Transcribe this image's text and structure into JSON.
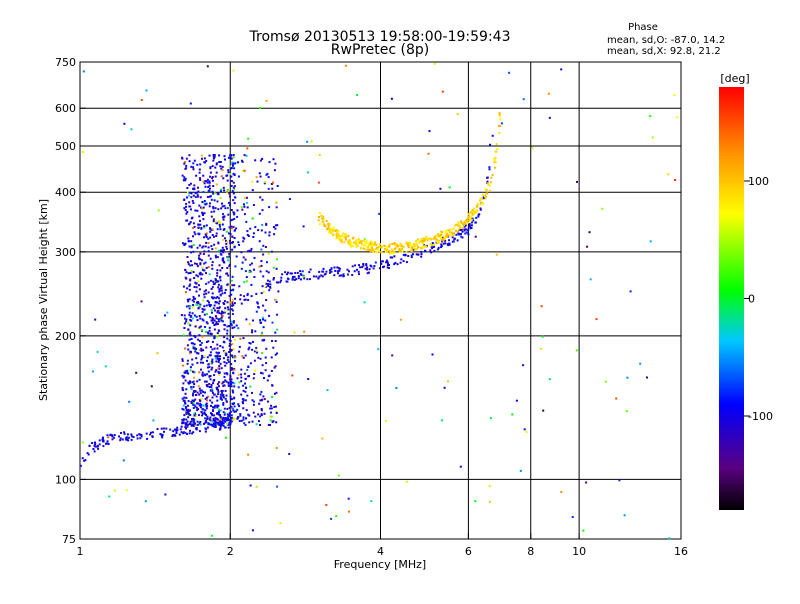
{
  "chart_data": {
    "type": "scatter",
    "title": "Tromsø 20130513 19:58:00-19:59:43",
    "subtitle": "RwPretec (8p)",
    "xlabel": "Frequency [MHz]",
    "ylabel": "Stationary phase Virtual Height [km]",
    "x_scale": "log",
    "y_scale": "log",
    "xlim": [
      1,
      16
    ],
    "ylim": [
      75,
      750
    ],
    "x_ticks": [
      1,
      2,
      4,
      6,
      8,
      10,
      16
    ],
    "x_tick_labels": [
      "1",
      "2",
      "4",
      "6",
      "8",
      "10",
      "16"
    ],
    "x_gridlines": [
      2,
      4,
      6,
      8,
      10
    ],
    "y_ticks": [
      75,
      100,
      200,
      300,
      400,
      500,
      600,
      750
    ],
    "y_tick_labels": [
      "75",
      "100",
      "200",
      "300",
      "400",
      "500",
      "600",
      "750"
    ],
    "y_gridlines": [
      100,
      200,
      300,
      400,
      500,
      600
    ],
    "phase_stats": {
      "heading": "Phase",
      "line_o": "mean, sd,O: -87.0, 14.2",
      "line_x": "mean, sd,X:  92.8, 21.2"
    },
    "colorbar": {
      "label": "[deg]",
      "range": [
        -180,
        180
      ],
      "ticks": [
        100,
        0,
        -100
      ],
      "tick_labels": [
        "100",
        "0",
        "-100"
      ],
      "colormap": "rainbow-black-purple-blue-cyan-green-yellow-orange-red"
    },
    "series": [
      {
        "name": "F-layer O-mode trace (blue)",
        "points": [
          [
            1.0,
            108
          ],
          [
            1.02,
            112
          ],
          [
            1.05,
            116
          ],
          [
            1.1,
            119
          ],
          [
            1.15,
            122
          ],
          [
            1.2,
            123
          ],
          [
            1.3,
            124
          ],
          [
            1.4,
            125
          ],
          [
            1.5,
            126
          ],
          [
            1.6,
            127
          ],
          [
            1.7,
            128
          ],
          [
            1.8,
            129
          ],
          [
            1.9,
            130
          ],
          [
            2.0,
            132
          ],
          [
            2.1,
            140
          ],
          [
            2.15,
            160
          ],
          [
            2.2,
            200
          ],
          [
            2.3,
            250
          ],
          [
            2.5,
            265
          ],
          [
            2.7,
            268
          ],
          [
            3.0,
            270
          ],
          [
            3.3,
            272
          ],
          [
            3.6,
            275
          ],
          [
            4.0,
            280
          ],
          [
            4.4,
            290
          ],
          [
            4.8,
            300
          ],
          [
            5.2,
            310
          ],
          [
            5.6,
            320
          ],
          [
            6.0,
            335
          ],
          [
            6.3,
            360
          ],
          [
            6.5,
            400
          ],
          [
            6.6,
            450
          ],
          [
            6.7,
            520
          ],
          [
            6.75,
            580
          ]
        ],
        "phase_deg": -100
      },
      {
        "name": "F-layer X-mode trace (yellow/orange)",
        "points": [
          [
            3.0,
            355
          ],
          [
            3.2,
            330
          ],
          [
            3.5,
            315
          ],
          [
            3.8,
            308
          ],
          [
            4.2,
            305
          ],
          [
            4.6,
            308
          ],
          [
            5.0,
            315
          ],
          [
            5.4,
            325
          ],
          [
            5.8,
            340
          ],
          [
            6.2,
            365
          ],
          [
            6.6,
            410
          ],
          [
            6.8,
            470
          ],
          [
            6.9,
            540
          ],
          [
            6.95,
            580
          ]
        ],
        "phase_deg": 90
      },
      {
        "name": "Spread-F cluster near 2 MHz",
        "x_range": [
          1.6,
          2.5
        ],
        "y_range": [
          130,
          480
        ],
        "phase_deg": -100
      }
    ]
  }
}
